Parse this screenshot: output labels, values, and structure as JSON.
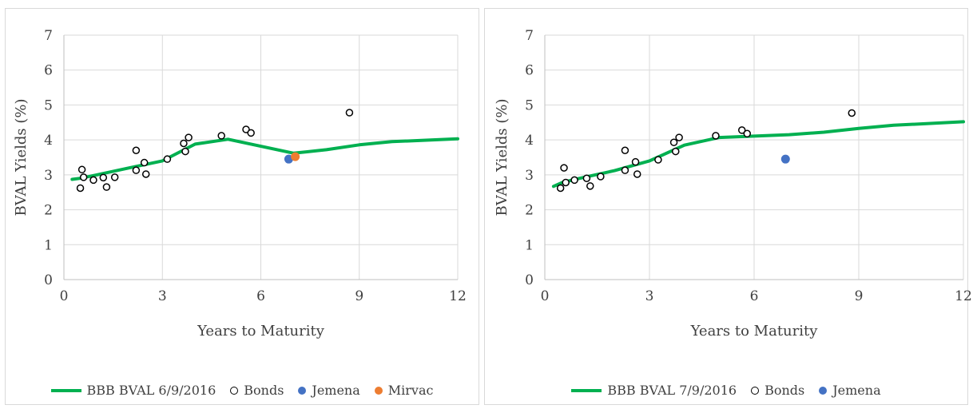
{
  "chart_data": [
    {
      "type": "line",
      "title": "",
      "xlabel": "Years to Maturity",
      "ylabel": "BVAL Yields (%)",
      "xlim": [
        0,
        12
      ],
      "ylim": [
        0,
        7
      ],
      "x_ticks": [
        "0",
        "3",
        "6",
        "9",
        "12"
      ],
      "y_ticks": [
        "0",
        "1",
        "2",
        "3",
        "4",
        "5",
        "6",
        "7"
      ],
      "grid": true,
      "legend_position": "bottom",
      "colors": {
        "curve": "#00b050",
        "bonds": "#000000",
        "jemena": "#4472c4",
        "mirvac": "#ed7d31"
      },
      "series": [
        {
          "name": "BBB BVAL 6/9/2016",
          "kind": "line",
          "points": [
            [
              0.25,
              2.87
            ],
            [
              0.5,
              2.9
            ],
            [
              1,
              3.0
            ],
            [
              2,
              3.2
            ],
            [
              3,
              3.4
            ],
            [
              4,
              3.88
            ],
            [
              5,
              4.02
            ],
            [
              7,
              3.62
            ],
            [
              8,
              3.72
            ],
            [
              9,
              3.86
            ],
            [
              10,
              3.95
            ],
            [
              12,
              4.03
            ]
          ]
        },
        {
          "name": "Bonds",
          "kind": "scatter-hollow",
          "points": [
            [
              0.5,
              2.62
            ],
            [
              0.55,
              3.15
            ],
            [
              0.6,
              2.93
            ],
            [
              0.9,
              2.85
            ],
            [
              1.2,
              2.92
            ],
            [
              1.3,
              2.65
            ],
            [
              1.55,
              2.93
            ],
            [
              2.2,
              3.7
            ],
            [
              2.2,
              3.13
            ],
            [
              2.45,
              3.35
            ],
            [
              2.5,
              3.02
            ],
            [
              3.15,
              3.45
            ],
            [
              3.65,
              3.9
            ],
            [
              3.7,
              3.67
            ],
            [
              3.8,
              4.07
            ],
            [
              4.8,
              4.12
            ],
            [
              5.55,
              4.3
            ],
            [
              5.7,
              4.2
            ],
            [
              8.7,
              4.78
            ]
          ]
        },
        {
          "name": "Jemena",
          "kind": "scatter-filled",
          "points": [
            [
              6.85,
              3.45
            ]
          ]
        },
        {
          "name": "Mirvac",
          "kind": "scatter-filled",
          "points": [
            [
              7.05,
              3.52
            ]
          ]
        }
      ]
    },
    {
      "type": "line",
      "title": "",
      "xlabel": "Years to Maturity",
      "ylabel": "BVAL Yields (%)",
      "xlim": [
        0,
        12
      ],
      "ylim": [
        0,
        7
      ],
      "x_ticks": [
        "0",
        "3",
        "6",
        "9",
        "12"
      ],
      "y_ticks": [
        "0",
        "1",
        "2",
        "3",
        "4",
        "5",
        "6",
        "7"
      ],
      "grid": true,
      "legend_position": "bottom",
      "colors": {
        "curve": "#00b050",
        "bonds": "#000000",
        "jemena": "#4472c4"
      },
      "series": [
        {
          "name": "BBB BVAL 7/9/2016",
          "kind": "line",
          "points": [
            [
              0.25,
              2.67
            ],
            [
              0.5,
              2.78
            ],
            [
              1,
              2.9
            ],
            [
              2,
              3.12
            ],
            [
              3,
              3.4
            ],
            [
              4,
              3.85
            ],
            [
              5,
              4.07
            ],
            [
              7,
              4.15
            ],
            [
              8,
              4.22
            ],
            [
              9,
              4.33
            ],
            [
              10,
              4.42
            ],
            [
              12,
              4.52
            ]
          ]
        },
        {
          "name": "Bonds",
          "kind": "scatter-hollow",
          "points": [
            [
              0.45,
              2.62
            ],
            [
              0.55,
              3.2
            ],
            [
              0.6,
              2.78
            ],
            [
              0.85,
              2.85
            ],
            [
              1.2,
              2.9
            ],
            [
              1.3,
              2.68
            ],
            [
              1.6,
              2.95
            ],
            [
              2.3,
              3.7
            ],
            [
              2.3,
              3.13
            ],
            [
              2.6,
              3.37
            ],
            [
              2.65,
              3.02
            ],
            [
              3.25,
              3.43
            ],
            [
              3.7,
              3.93
            ],
            [
              3.75,
              3.67
            ],
            [
              3.85,
              4.07
            ],
            [
              4.9,
              4.12
            ],
            [
              5.65,
              4.28
            ],
            [
              5.8,
              4.18
            ],
            [
              8.8,
              4.77
            ]
          ]
        },
        {
          "name": "Jemena",
          "kind": "scatter-filled",
          "points": [
            [
              6.9,
              3.45
            ]
          ]
        }
      ]
    }
  ]
}
